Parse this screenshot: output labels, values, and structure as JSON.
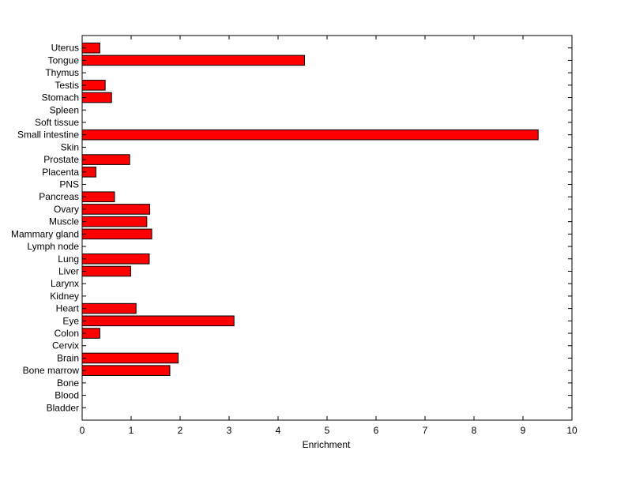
{
  "chart_data": {
    "type": "bar",
    "orientation": "horizontal",
    "categories": [
      "Uterus",
      "Tongue",
      "Thymus",
      "Testis",
      "Stomach",
      "Spleen",
      "Soft tissue",
      "Small intestine",
      "Skin",
      "Prostate",
      "Placenta",
      "PNS",
      "Pancreas",
      "Ovary",
      "Muscle",
      "Mammary gland",
      "Lymph node",
      "Lung",
      "Liver",
      "Larynx",
      "Kidney",
      "Heart",
      "Eye",
      "Colon",
      "Cervix",
      "Brain",
      "Bone marrow",
      "Bone",
      "Blood",
      "Bladder"
    ],
    "values": [
      0.36,
      4.54,
      0,
      0.47,
      0.6,
      0,
      0,
      9.31,
      0,
      0.97,
      0.28,
      0,
      0.66,
      1.38,
      1.32,
      1.42,
      0,
      1.37,
      0.99,
      0,
      0,
      1.1,
      3.1,
      0.36,
      0,
      1.96,
      1.79,
      0,
      0,
      0
    ],
    "xlabel": "Enrichment",
    "ylabel": "",
    "title": "",
    "xlim": [
      0,
      10
    ],
    "xticks": [
      "0",
      "1",
      "2",
      "3",
      "4",
      "5",
      "6",
      "7",
      "8",
      "9",
      "10"
    ],
    "bar_color": "#ff0000",
    "bar_edge_color": "#000000",
    "grid": false,
    "legend": "none"
  }
}
